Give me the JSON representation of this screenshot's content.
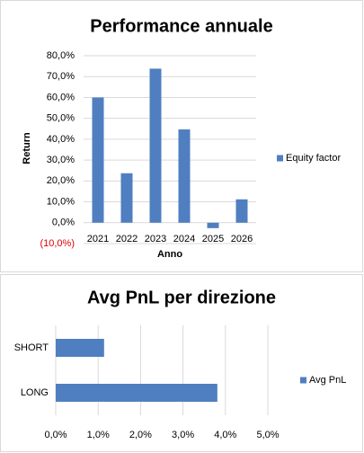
{
  "chart_data": [
    {
      "type": "bar",
      "title": "Performance annuale",
      "y_label": "Return",
      "x_label": "Anno",
      "categories": [
        "2021",
        "2022",
        "2023",
        "2024",
        "2025",
        "2026"
      ],
      "series": [
        {
          "name": "Equity factor",
          "color": "#4f7fc0",
          "values": [
            60,
            23.7,
            73.8,
            44.7,
            -2.6,
            11.2
          ]
        }
      ],
      "ylim": [
        -10,
        80
      ],
      "yticks": [
        {
          "value": -10,
          "label": "(10,0%)"
        },
        {
          "value": 0,
          "label": "0,0%"
        },
        {
          "value": 10,
          "label": "10,0%"
        },
        {
          "value": 20,
          "label": "20,0%"
        },
        {
          "value": 30,
          "label": "30,0%"
        },
        {
          "value": 40,
          "label": "40,0%"
        },
        {
          "value": 50,
          "label": "50,0%"
        },
        {
          "value": 60,
          "label": "60,0%"
        },
        {
          "value": 70,
          "label": "70,0%"
        },
        {
          "value": 80,
          "label": "80,0%"
        }
      ],
      "negative_label_color": "#e00000",
      "grid": true,
      "legend": "right"
    },
    {
      "type": "barh",
      "title": "Avg PnL per direzione",
      "categories": [
        "SHORT",
        "LONG"
      ],
      "series": [
        {
          "name": "Avg PnL",
          "color": "#4f7fc0",
          "values": [
            1.14,
            3.81
          ]
        }
      ],
      "xlim": [
        0,
        5
      ],
      "xticks": [
        {
          "value": 0,
          "label": "0,0%"
        },
        {
          "value": 1,
          "label": "1,0%"
        },
        {
          "value": 2,
          "label": "2,0%"
        },
        {
          "value": 3,
          "label": "3,0%"
        },
        {
          "value": 4,
          "label": "4,0%"
        },
        {
          "value": 5,
          "label": "5,0%"
        }
      ],
      "grid": true,
      "legend": "right"
    }
  ]
}
